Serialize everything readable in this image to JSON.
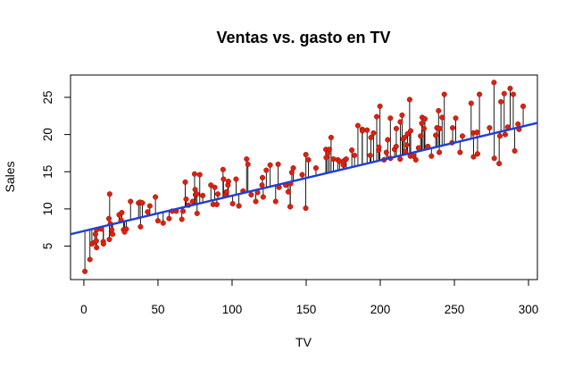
{
  "chart_data": {
    "type": "scatter",
    "title": "Ventas vs. gasto en TV",
    "xlabel": "TV",
    "ylabel": "Sales",
    "xlim": [
      -9,
      306
    ],
    "ylim": [
      0.5,
      28
    ],
    "x_ticks": [
      0,
      50,
      100,
      150,
      200,
      250,
      300
    ],
    "y_ticks": [
      5,
      10,
      15,
      20,
      25
    ],
    "grid": false,
    "legend": "none",
    "regression_line": {
      "intercept": 7.03,
      "slope": 0.0475,
      "color": "#1f3fd6"
    },
    "point_color": "#e0200f",
    "residual_color": "#000000",
    "series": [
      {
        "points": [
          [
            0.7,
            1.6
          ],
          [
            4.1,
            3.2
          ],
          [
            5.4,
            5.3
          ],
          [
            7.3,
            5.5
          ],
          [
            7.8,
            6.6
          ],
          [
            8.4,
            5.7
          ],
          [
            8.6,
            4.8
          ],
          [
            8.7,
            7.2
          ],
          [
            11.7,
            7.3
          ],
          [
            13.1,
            5.6
          ],
          [
            13.2,
            5.3
          ],
          [
            16.9,
            8.7
          ],
          [
            17.2,
            5.9
          ],
          [
            17.9,
            8.0
          ],
          [
            18.7,
            6.7
          ],
          [
            19.4,
            6.6
          ],
          [
            18.8,
            7.2
          ],
          [
            17.4,
            12.0
          ],
          [
            23.8,
            9.2
          ],
          [
            25.1,
            8.5
          ],
          [
            25.6,
            9.5
          ],
          [
            26.8,
            7.2
          ],
          [
            28.6,
            7.3
          ],
          [
            27.5,
            6.9
          ],
          [
            31.5,
            11.0
          ],
          [
            36.9,
            10.8
          ],
          [
            38.0,
            10.9
          ],
          [
            38.2,
            7.6
          ],
          [
            39.5,
            10.8
          ],
          [
            43.0,
            9.6
          ],
          [
            44.5,
            10.4
          ],
          [
            48.3,
            11.6
          ],
          [
            50.0,
            8.4
          ],
          [
            53.5,
            8.1
          ],
          [
            57.5,
            8.7
          ],
          [
            59.6,
            9.7
          ],
          [
            62.3,
            9.7
          ],
          [
            66.1,
            8.6
          ],
          [
            66.9,
            9.7
          ],
          [
            68.4,
            13.6
          ],
          [
            69.0,
            11.3
          ],
          [
            70.6,
            10.5
          ],
          [
            73.4,
            11.0
          ],
          [
            74.7,
            14.7
          ],
          [
            75.1,
            12.6
          ],
          [
            75.3,
            11.9
          ],
          [
            76.3,
            12.0
          ],
          [
            78.2,
            14.6
          ],
          [
            76.4,
            9.4
          ],
          [
            80.2,
            11.8
          ],
          [
            85.7,
            13.2
          ],
          [
            87.2,
            10.6
          ],
          [
            88.3,
            12.9
          ],
          [
            89.7,
            10.6
          ],
          [
            90.4,
            12.0
          ],
          [
            93.9,
            15.3
          ],
          [
            94.2,
            14.0
          ],
          [
            95.7,
            11.9
          ],
          [
            96.2,
            12.3
          ],
          [
            97.2,
            13.2
          ],
          [
            97.5,
            13.7
          ],
          [
            100.4,
            10.7
          ],
          [
            102.7,
            14.0
          ],
          [
            104.6,
            10.4
          ],
          [
            107.4,
            12.4
          ],
          [
            109.8,
            16.7
          ],
          [
            110.7,
            16.0
          ],
          [
            112.9,
            11.9
          ],
          [
            116.0,
            11.0
          ],
          [
            117.2,
            12.2
          ],
          [
            120.2,
            13.2
          ],
          [
            120.5,
            14.2
          ],
          [
            121.0,
            11.6
          ],
          [
            123.1,
            15.2
          ],
          [
            125.7,
            15.9
          ],
          [
            129.4,
            11.0
          ],
          [
            131.1,
            16.0
          ],
          [
            131.7,
            12.9
          ],
          [
            136.2,
            13.2
          ],
          [
            137.9,
            12.3
          ],
          [
            139.2,
            10.3
          ],
          [
            139.3,
            10.3
          ],
          [
            139.5,
            13.4
          ],
          [
            140.3,
            14.9
          ],
          [
            141.3,
            15.5
          ],
          [
            147.3,
            14.6
          ],
          [
            149.7,
            10.1
          ],
          [
            149.8,
            17.3
          ],
          [
            151.5,
            16.6
          ],
          [
            156.6,
            15.5
          ],
          [
            163.3,
            18.0
          ],
          [
            163.5,
            16.9
          ],
          [
            164.5,
            17.5
          ],
          [
            165.6,
            18.0
          ],
          [
            166.8,
            19.6
          ],
          [
            168.4,
            16.7
          ],
          [
            171.3,
            16.6
          ],
          [
            172.5,
            16.4
          ],
          [
            175.1,
            15.9
          ],
          [
            175.7,
            16.5
          ],
          [
            177.0,
            16.7
          ],
          [
            180.8,
            17.9
          ],
          [
            182.6,
            17.2
          ],
          [
            184.9,
            21.2
          ],
          [
            187.8,
            20.7
          ],
          [
            187.9,
            20.5
          ],
          [
            191.1,
            20.6
          ],
          [
            193.2,
            17.2
          ],
          [
            193.7,
            19.6
          ],
          [
            195.4,
            20.2
          ],
          [
            197.6,
            22.4
          ],
          [
            198.9,
            17.9
          ],
          [
            199.1,
            18.3
          ],
          [
            199.8,
            23.8
          ],
          [
            202.5,
            16.6
          ],
          [
            204.1,
            17.6
          ],
          [
            205.0,
            19.3
          ],
          [
            206.8,
            22.2
          ],
          [
            206.9,
            16.8
          ],
          [
            209.6,
            18.0
          ],
          [
            210.7,
            18.4
          ],
          [
            210.8,
            20.8
          ],
          [
            213.4,
            16.7
          ],
          [
            213.5,
            21.7
          ],
          [
            214.7,
            22.6
          ],
          [
            215.4,
            19.4
          ],
          [
            216.4,
            19.6
          ],
          [
            216.8,
            17.7
          ],
          [
            217.7,
            18.6
          ],
          [
            218.4,
            20.1
          ],
          [
            219.8,
            24.7
          ],
          [
            220.3,
            17.1
          ],
          [
            220.5,
            20.5
          ],
          [
            222.4,
            17.1
          ],
          [
            224.0,
            16.6
          ],
          [
            225.8,
            18.2
          ],
          [
            227.2,
            19.8
          ],
          [
            228.0,
            21.5
          ],
          [
            228.3,
            22.3
          ],
          [
            229.5,
            20.8
          ],
          [
            230.1,
            22.1
          ],
          [
            232.1,
            18.4
          ],
          [
            234.5,
            17.1
          ],
          [
            237.4,
            19.9
          ],
          [
            238.2,
            20.9
          ],
          [
            239.3,
            23.2
          ],
          [
            239.8,
            17.6
          ],
          [
            240.1,
            20.8
          ],
          [
            241.7,
            22.3
          ],
          [
            243.2,
            25.4
          ],
          [
            248.4,
            18.9
          ],
          [
            248.8,
            20.9
          ],
          [
            250.9,
            22.2
          ],
          [
            253.8,
            17.6
          ],
          [
            255.4,
            19.8
          ],
          [
            261.3,
            24.2
          ],
          [
            262.7,
            20.2
          ],
          [
            262.9,
            17.0
          ],
          [
            265.2,
            20.3
          ],
          [
            265.6,
            17.4
          ],
          [
            266.9,
            25.4
          ],
          [
            273.7,
            20.9
          ],
          [
            276.7,
            27.0
          ],
          [
            276.9,
            16.8
          ],
          [
            280.2,
            16.1
          ],
          [
            280.7,
            19.8
          ],
          [
            281.4,
            24.4
          ],
          [
            283.6,
            25.5
          ],
          [
            284.3,
            20.0
          ],
          [
            286.0,
            21.0
          ],
          [
            287.6,
            26.2
          ],
          [
            289.7,
            25.4
          ],
          [
            290.7,
            17.8
          ],
          [
            292.9,
            21.4
          ],
          [
            293.6,
            20.7
          ],
          [
            296.4,
            23.8
          ]
        ]
      }
    ]
  }
}
